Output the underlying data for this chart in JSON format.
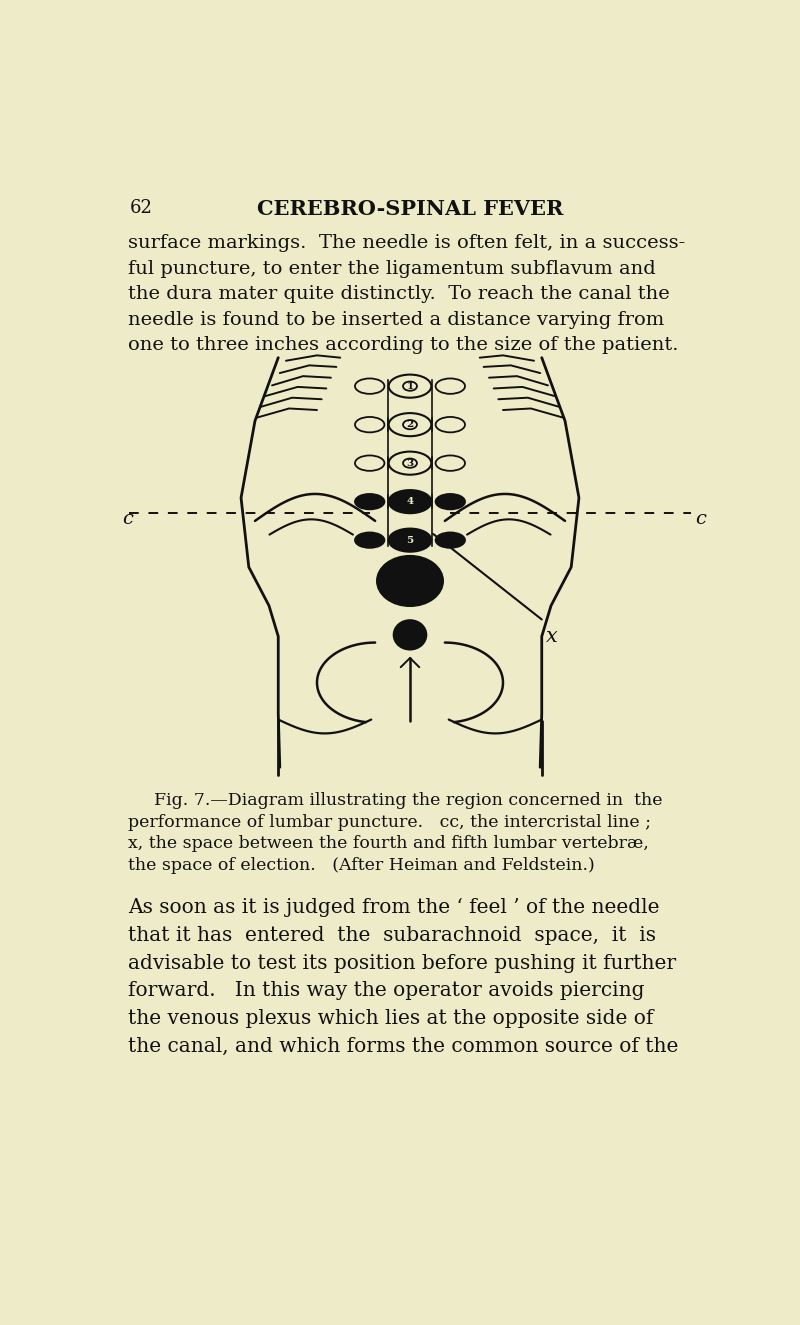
{
  "bg_color": "#eeecc8",
  "text_color": "#111111",
  "page_number": "62",
  "page_header": "CEREBRO-SPINAL FEVER",
  "para1_lines": [
    "surface markings.  The needle is often felt, in a success-",
    "ful puncture, to enter the ligamentum subflavum and",
    "the dura mater quite distinctly.  To reach the canal the",
    "needle is found to be inserted a distance varying from",
    "one to three inches according to the size of the patient."
  ],
  "caption_lines": [
    "Fig. 7.—Diagram illustrating the region concerned in  the",
    "performance of lumbar puncture.   cc, the intercristal line ;",
    "x, the space between the fourth and fifth lumbar vertebræ,",
    "the space of election.   (After Heiman and Feldstein.)"
  ],
  "para2_lines": [
    "As soon as it is judged from the ‘ feel ’ of the needle",
    "that it has  entered  the  subarachnoid  space,  it  is",
    "advisable to test its position before pushing it further",
    "forward.   In this way the operator avoids piercing",
    "the venous plexus which lies at the opposite side of",
    "the canal, and which forms the common source of the"
  ]
}
